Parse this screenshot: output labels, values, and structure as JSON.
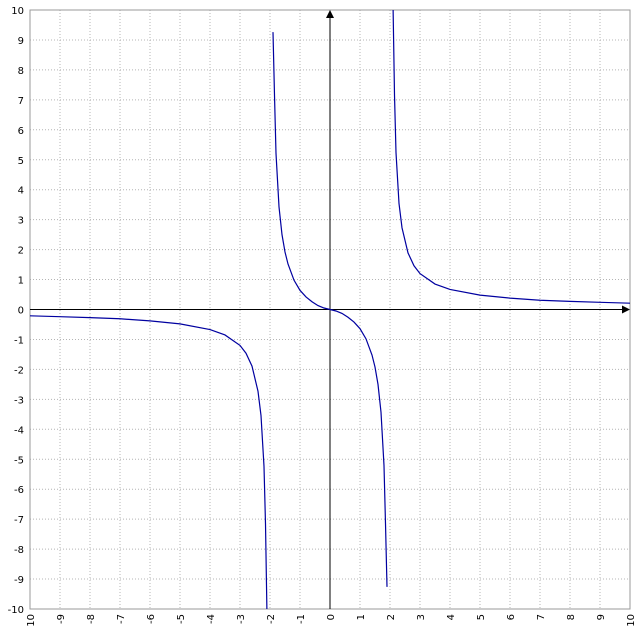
{
  "chart_data": {
    "type": "line",
    "title": "",
    "xlabel": "",
    "ylabel": "",
    "xlim": [
      -10,
      10
    ],
    "ylim": [
      -10,
      10
    ],
    "grid": true,
    "grid_style": "dotted",
    "x_ticks": [
      -10,
      -9,
      -8,
      -7,
      -6,
      -5,
      -4,
      -3,
      -2,
      -1,
      0,
      1,
      2,
      3,
      4,
      5,
      6,
      7,
      8,
      9,
      10
    ],
    "y_ticks": [
      -10,
      -9,
      -8,
      -7,
      -6,
      -5,
      -4,
      -3,
      -2,
      -1,
      0,
      1,
      2,
      3,
      4,
      5,
      6,
      7,
      8,
      9,
      10
    ],
    "x_tick_labels": [
      "-10",
      "-9",
      "-8",
      "-7",
      "-6",
      "-5",
      "-4",
      "-3",
      "-2",
      "-1",
      "0",
      "1",
      "2",
      "3",
      "4",
      "5",
      "6",
      "7",
      "8",
      "9",
      "10"
    ],
    "y_tick_labels": [
      "-10",
      "-9",
      "-8",
      "-7",
      "-6",
      "-5",
      "-4",
      "-3",
      "-2",
      "-1",
      "0",
      "1",
      "2",
      "3",
      "4",
      "5",
      "6",
      "7",
      "8",
      "9",
      "10"
    ],
    "x_label_orientation": "vertical",
    "colors": {
      "curve": "#0000a0",
      "axis": "#000000",
      "grid": "#b4b4b4",
      "frame": "#9a9a9a"
    },
    "series": [
      {
        "x": [
          -10,
          -9,
          -8,
          -7,
          -6,
          -5,
          -4,
          -3.5,
          -3,
          -2.8,
          -2.6,
          -2.4,
          -2.3,
          -2.2,
          -2.15,
          -2.1
        ],
        "y": [
          -0.21,
          -0.24,
          -0.27,
          -0.31,
          -0.38,
          -0.48,
          -0.67,
          -0.85,
          -1.2,
          -1.46,
          -1.89,
          -2.73,
          -3.54,
          -5.24,
          -7.16,
          -10.24
        ]
      },
      {
        "x": [
          -1.9,
          -1.85,
          -1.8,
          -1.7,
          -1.6,
          -1.5,
          -1.4,
          -1.2,
          -1,
          -0.8,
          -0.6,
          -0.4,
          -0.2,
          0,
          0.2,
          0.4,
          0.6,
          0.8,
          1,
          1.2,
          1.4,
          1.5,
          1.6,
          1.7,
          1.8,
          1.85,
          1.9
        ],
        "y": [
          9.26,
          7.15,
          5.21,
          3.43,
          2.5,
          1.92,
          1.52,
          0.98,
          0.64,
          0.42,
          0.26,
          0.13,
          0.05,
          0,
          -0.05,
          -0.13,
          -0.26,
          -0.42,
          -0.64,
          -0.98,
          -1.52,
          -1.92,
          -2.5,
          -3.43,
          -5.21,
          -7.15,
          -9.26
        ]
      },
      {
        "x": [
          2.1,
          2.15,
          2.2,
          2.3,
          2.4,
          2.6,
          2.8,
          3,
          3.5,
          4,
          5,
          6,
          7,
          8,
          9,
          10
        ],
        "y": [
          10.24,
          7.16,
          5.24,
          3.54,
          2.73,
          1.89,
          1.46,
          1.2,
          0.85,
          0.67,
          0.48,
          0.38,
          0.31,
          0.27,
          0.24,
          0.21
        ]
      }
    ]
  }
}
